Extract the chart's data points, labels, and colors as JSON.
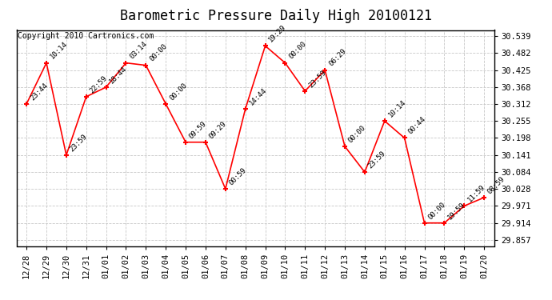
{
  "title": "Barometric Pressure Daily High 20100121",
  "copyright": "Copyright 2010 Cartronics.com",
  "x_labels": [
    "12/28",
    "12/29",
    "12/30",
    "12/31",
    "01/01",
    "01/02",
    "01/03",
    "01/04",
    "01/05",
    "01/06",
    "01/07",
    "01/08",
    "01/09",
    "01/10",
    "01/11",
    "01/12",
    "01/13",
    "01/14",
    "01/15",
    "01/16",
    "01/17",
    "01/18",
    "01/19",
    "01/20"
  ],
  "y_values": [
    30.312,
    30.449,
    30.141,
    30.336,
    30.368,
    30.449,
    30.441,
    30.312,
    30.184,
    30.184,
    30.028,
    30.295,
    30.506,
    30.449,
    30.355,
    30.425,
    30.17,
    30.084,
    30.255,
    30.198,
    29.914,
    29.914,
    29.971,
    29.999
  ],
  "time_labels": [
    "23:44",
    "10:14",
    "23:59",
    "22:59",
    "18:44",
    "03:14",
    "00:00",
    "00:00",
    "09:59",
    "09:29",
    "00:59",
    "14:44",
    "19:29",
    "00:00",
    "23:59",
    "06:29",
    "00:00",
    "23:59",
    "10:14",
    "00:44",
    "00:00",
    "19:59",
    "11:59",
    "08:59"
  ],
  "line_color": "#ff0000",
  "marker_color": "#ff0000",
  "background_color": "#ffffff",
  "grid_color": "#c8c8c8",
  "title_fontsize": 12,
  "ylabel_values": [
    29.857,
    29.914,
    29.971,
    30.028,
    30.084,
    30.141,
    30.198,
    30.255,
    30.312,
    30.368,
    30.425,
    30.482,
    30.539
  ],
  "ylim_min": 29.837,
  "ylim_max": 30.559,
  "text_color": "#000000",
  "copyright_fontsize": 7,
  "tick_fontsize": 7.5,
  "label_fontsize": 6.5
}
